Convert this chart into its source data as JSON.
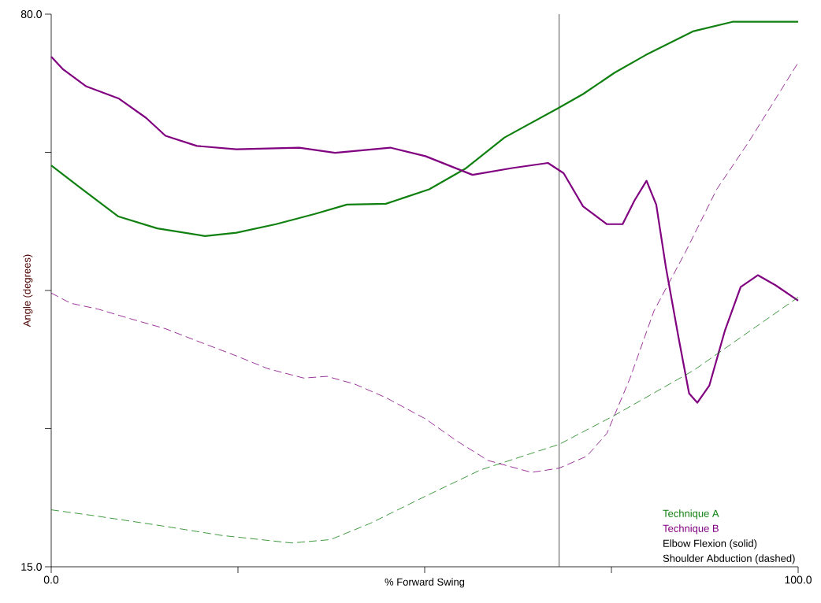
{
  "chart_data": {
    "type": "line",
    "xlabel": "% Forward Swing",
    "ylabel": "Angle (degrees)",
    "xlim": [
      0,
      100
    ],
    "ylim": [
      15,
      80
    ],
    "xticks": [
      {
        "value": 0,
        "label": "0.0"
      },
      {
        "value": 25,
        "label": null
      },
      {
        "value": 50,
        "label": null
      },
      {
        "value": 75,
        "label": null
      },
      {
        "value": 100,
        "label": "100.0"
      }
    ],
    "yticks": [
      {
        "value": 15,
        "label": "15.0"
      },
      {
        "value": 31.25,
        "label": null
      },
      {
        "value": 47.5,
        "label": null
      },
      {
        "value": 63.75,
        "label": null
      },
      {
        "value": 80,
        "label": "80.0"
      }
    ],
    "ref_lines": [
      {
        "axis": "x",
        "value": 68.0,
        "color": "#404040"
      }
    ],
    "annotations": [
      "Technique A",
      "Technique B",
      "Elbow Flexion (solid)",
      "Shoulder Abduction (dashed)"
    ],
    "series": [
      {
        "color": "#108010",
        "line_style": "solid",
        "x": [
          0,
          3.7,
          9.0,
          14.2,
          20.6,
          24.8,
          30.1,
          35.3,
          39.6,
          44.8,
          50.6,
          55.4,
          60.7,
          68.0,
          71.2,
          75.4,
          79.6,
          86.0,
          91.2,
          100
        ],
        "values": [
          62.2,
          59.7,
          56.2,
          54.8,
          53.9,
          54.3,
          55.3,
          56.5,
          57.6,
          57.7,
          59.4,
          61.8,
          65.5,
          69.0,
          70.6,
          73.1,
          75.2,
          78.0,
          79.1,
          79.1
        ]
      },
      {
        "color": "#800080",
        "line_style": "solid",
        "x": [
          0,
          1.6,
          4.7,
          9.0,
          12.7,
          15.3,
          19.5,
          24.8,
          33.2,
          38.0,
          45.4,
          50.1,
          56.4,
          61.7,
          66.5,
          68.6,
          71.2,
          74.4,
          76.5,
          78.1,
          79.7,
          81.0,
          82.3,
          84.0,
          85.4,
          86.5,
          88.1,
          90.2,
          92.3,
          94.6,
          97.0,
          100
        ],
        "values": [
          75.0,
          73.5,
          71.5,
          70.1,
          67.8,
          65.7,
          64.5,
          64.1,
          64.3,
          63.7,
          64.3,
          63.3,
          61.1,
          61.9,
          62.5,
          61.3,
          57.4,
          55.3,
          55.3,
          58.1,
          60.4,
          57.6,
          50.2,
          41.9,
          35.4,
          34.3,
          36.3,
          42.8,
          47.9,
          49.3,
          48.1,
          46.3
        ]
      },
      {
        "color": "#108010",
        "line_style": "dashed",
        "x": [
          0,
          5.8,
          14.2,
          22.7,
          32.2,
          37.4,
          42.7,
          50.1,
          57.5,
          68.0,
          75.4,
          86.0,
          100
        ],
        "values": [
          21.7,
          21.0,
          19.9,
          18.7,
          17.8,
          18.2,
          20.1,
          23.3,
          26.4,
          29.4,
          32.8,
          38.1,
          46.7
        ]
      },
      {
        "color": "#800080",
        "line_style": "dashed",
        "x": [
          0,
          2.6,
          6.3,
          10.5,
          15.3,
          20.0,
          24.8,
          29.0,
          33.8,
          36.9,
          40.6,
          44.8,
          50.1,
          54.3,
          58.5,
          64.3,
          68.0,
          71.7,
          74.4,
          77.5,
          80.7,
          84.9,
          89.1,
          93.4,
          100
        ],
        "values": [
          47.2,
          46.0,
          45.3,
          44.2,
          43.0,
          41.4,
          39.8,
          38.3,
          37.2,
          37.4,
          36.5,
          34.9,
          32.4,
          29.8,
          27.5,
          26.1,
          26.6,
          28.0,
          30.7,
          37.2,
          45.1,
          52.0,
          59.4,
          65.0,
          74.3
        ]
      }
    ]
  }
}
